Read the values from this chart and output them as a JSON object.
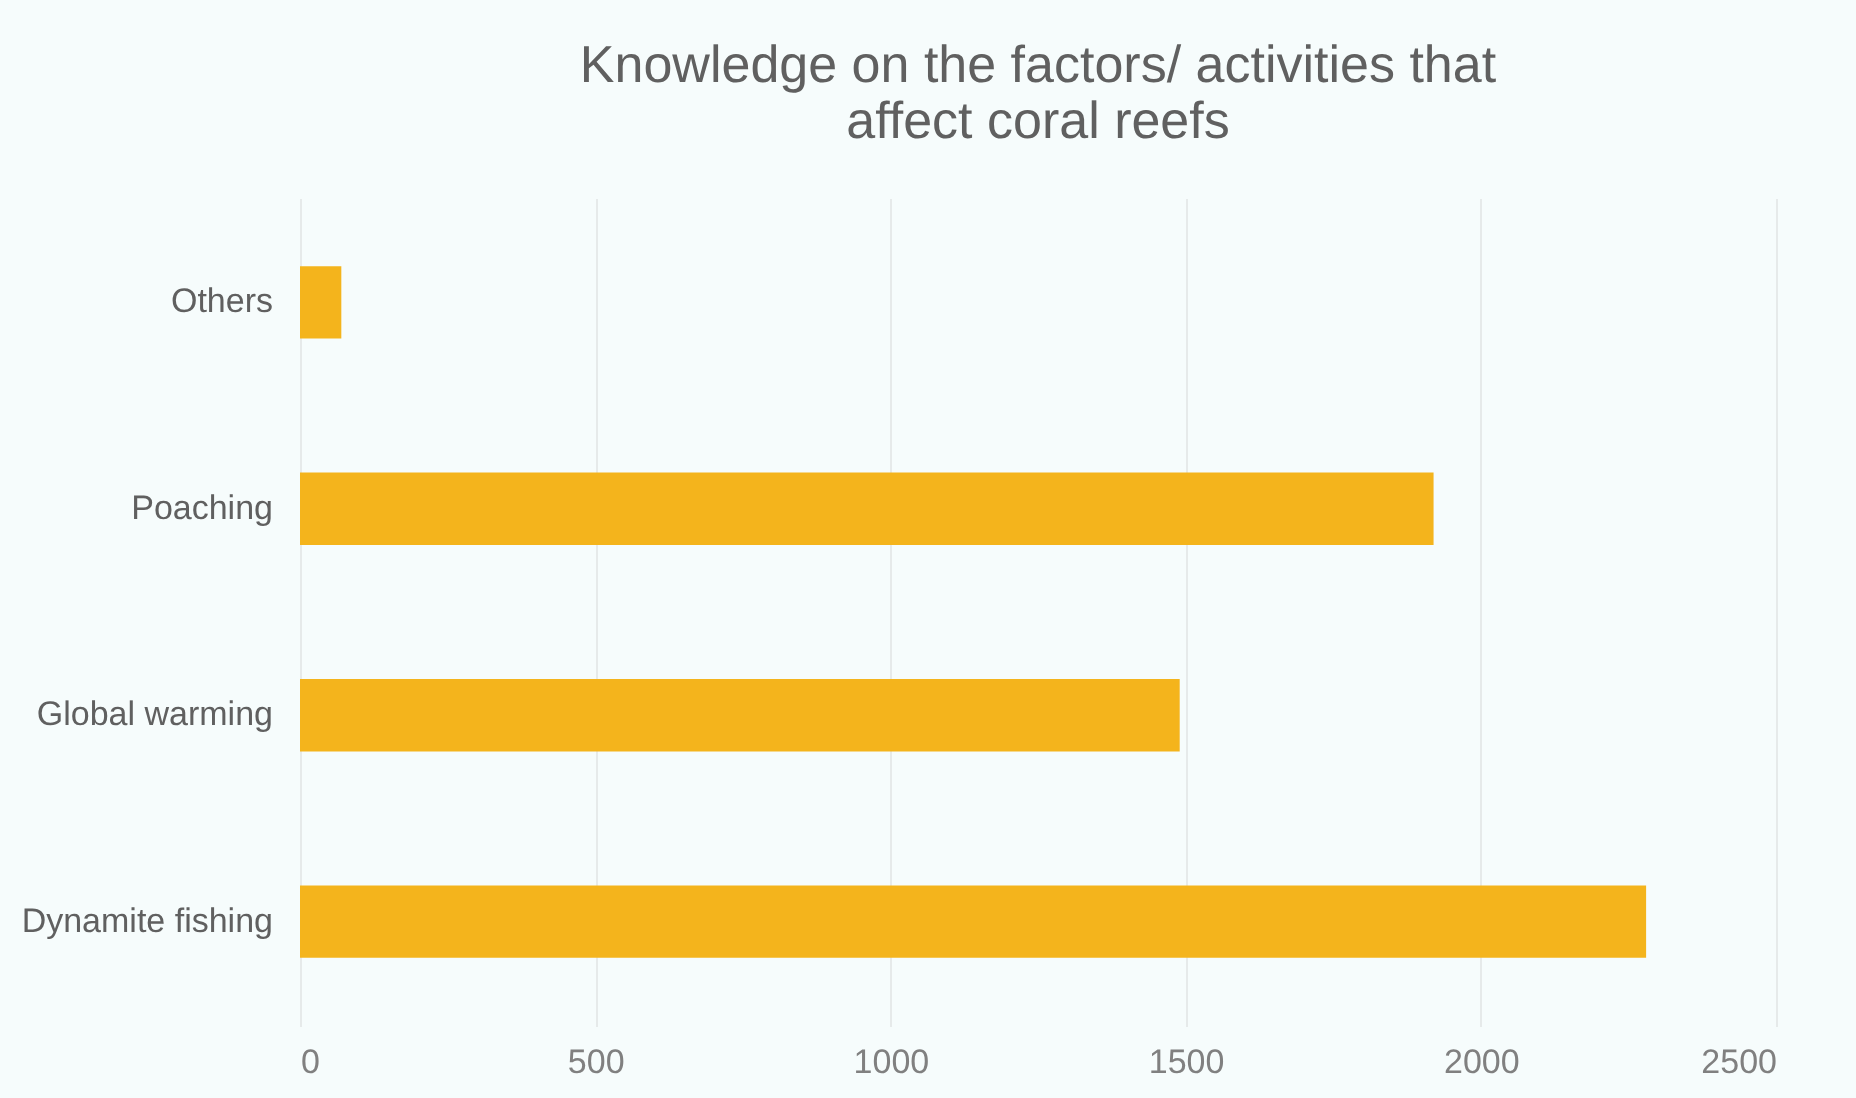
{
  "chart_data": {
    "type": "bar",
    "orientation": "horizontal",
    "title": "Knowledge on the factors/ activities that affect coral reefs",
    "categories": [
      "Others",
      "Poaching",
      "Global warming",
      "Dynamite fishing"
    ],
    "values": [
      70,
      1920,
      1490,
      2280
    ],
    "color": "#f4b41c",
    "xlim": [
      0,
      2500
    ],
    "xticks": [
      0,
      500,
      1000,
      1500,
      2000,
      2500
    ],
    "grid": "x"
  }
}
